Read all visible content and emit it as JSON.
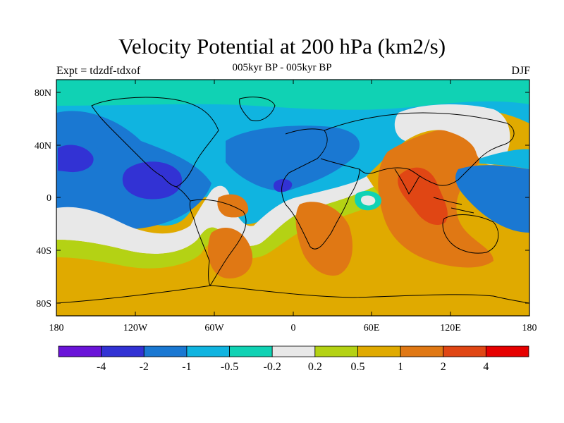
{
  "title": "Velocity Potential at 200 hPa (km2/s)",
  "subtitle_left": "Expt = tdzdf-tdxof",
  "subtitle_center": "005kyr BP - 005kyr BP",
  "subtitle_right": "DJF",
  "lat_ticks": [
    "80N",
    "40N",
    "0",
    "40S",
    "80S"
  ],
  "lon_ticks": [
    "180",
    "120W",
    "60W",
    "0",
    "60E",
    "120E",
    "180"
  ],
  "colorbar": {
    "labels": [
      "-4",
      "-2",
      "-1",
      "-0.5",
      "-0.2",
      "0.2",
      "0.5",
      "1",
      "2",
      "4"
    ],
    "colors": [
      "#6a14d8",
      "#3232d4",
      "#1a78d2",
      "#10b4e0",
      "#10d2b4",
      "#e8e8e8",
      "#b4d214",
      "#e0aa00",
      "#e07814",
      "#e04614",
      "#e60000"
    ]
  },
  "fill_colors": {
    "c_neg4": "#6a14d8",
    "c_neg2": "#3232d4",
    "c_neg1": "#1a78d2",
    "c_neg05": "#10b4e0",
    "c_neg02": "#10d2b4",
    "c_zero": "#e8e8e8",
    "c_pos02": "#b4d214",
    "c_pos05": "#e0aa00",
    "c_pos1": "#e07814",
    "c_pos2": "#e04614"
  }
}
